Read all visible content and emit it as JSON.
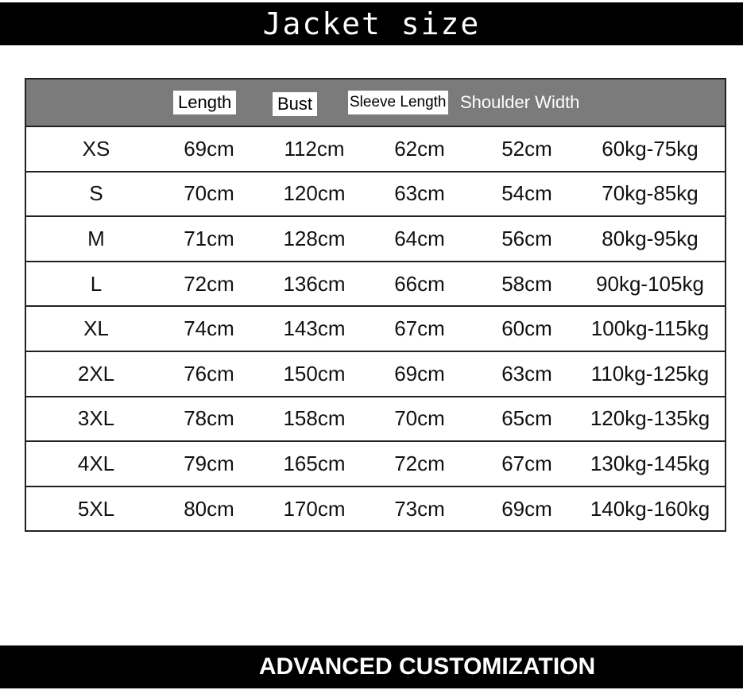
{
  "title": "Jacket size",
  "headers": [
    "",
    "Length",
    "Bust",
    "Sleeve Length",
    "Shoulder Width",
    ""
  ],
  "rows": [
    [
      "XS",
      "69cm",
      "112cm",
      "62cm",
      "52cm",
      "60kg-75kg"
    ],
    [
      "S",
      "70cm",
      "120cm",
      "63cm",
      "54cm",
      "70kg-85kg"
    ],
    [
      "M",
      "71cm",
      "128cm",
      "64cm",
      "56cm",
      "80kg-95kg"
    ],
    [
      "L",
      "72cm",
      "136cm",
      "66cm",
      "58cm",
      "90kg-105kg"
    ],
    [
      "XL",
      "74cm",
      "143cm",
      "67cm",
      "60cm",
      "100kg-115kg"
    ],
    [
      "2XL",
      "76cm",
      "150cm",
      "69cm",
      "63cm",
      "110kg-125kg"
    ],
    [
      "3XL",
      "78cm",
      "158cm",
      "70cm",
      "65cm",
      "120kg-135kg"
    ],
    [
      "4XL",
      "79cm",
      "165cm",
      "72cm",
      "67cm",
      "130kg-145kg"
    ],
    [
      "5XL",
      "80cm",
      "170cm",
      "73cm",
      "69cm",
      "140kg-160kg"
    ]
  ],
  "footer": "ADVANCED CUSTOMIZATION",
  "colors": {
    "bar": "#000000",
    "header_bg": "#7b7b7b",
    "border": "#222222"
  }
}
